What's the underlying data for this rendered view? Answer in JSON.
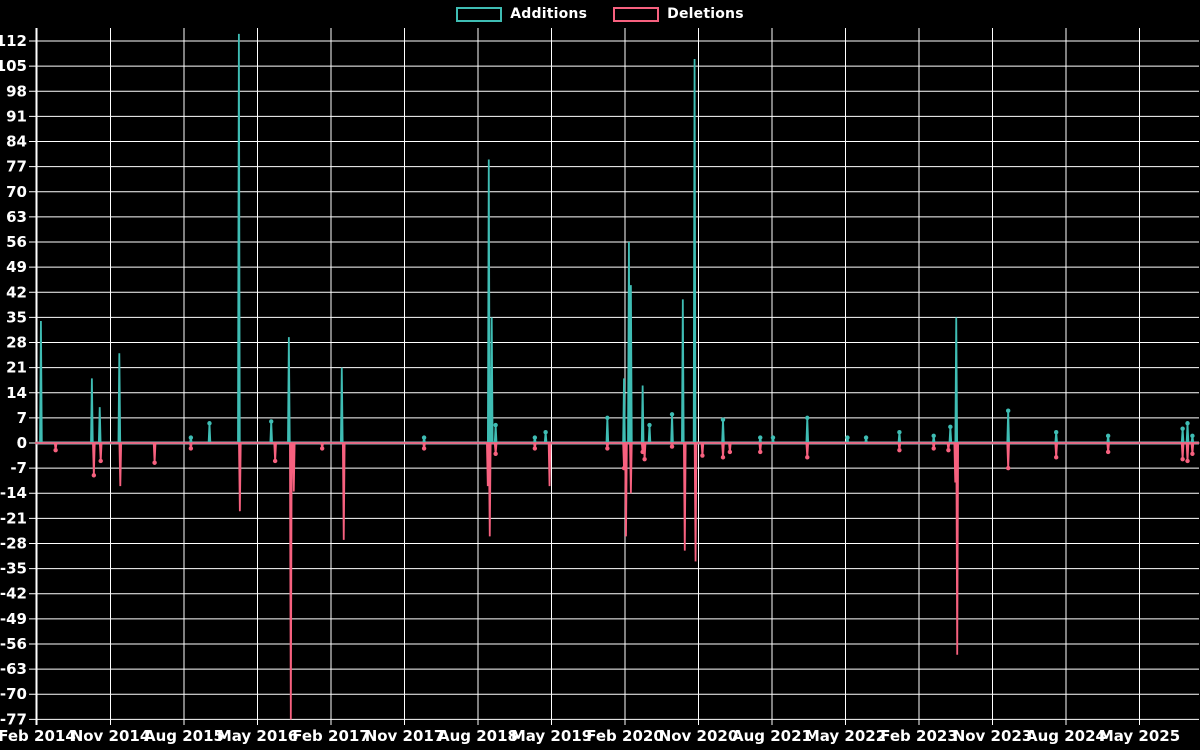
{
  "legend": {
    "items": [
      {
        "label": "Additions",
        "color": "#3fbdb4"
      },
      {
        "label": "Deletions",
        "color": "#f7617f"
      }
    ]
  },
  "colors": {
    "background": "#000000",
    "grid": "#ffffff",
    "zero_line": "#8fb0ba",
    "text": "#ffffff",
    "additions": "#3fbdb4",
    "deletions": "#f7617f"
  },
  "chart_data": {
    "type": "line",
    "title": "",
    "xlabel": "",
    "ylabel": "",
    "legend_position": "top-center",
    "grid": true,
    "baseline": 0,
    "y_axis": {
      "min": -77,
      "max": 112,
      "step": 7
    },
    "x_axis": {
      "tick_labels": [
        "Feb 2014",
        "Nov 2014",
        "Aug 2015",
        "May 2016",
        "Feb 2017",
        "Nov 2017",
        "Aug 2018",
        "May 2019",
        "Feb 2020",
        "Nov 2020",
        "Aug 2021",
        "May 2022",
        "Feb 2023",
        "Nov 2023",
        "Aug 2024",
        "May 2025"
      ],
      "first_tick_year": 2014.12,
      "years_per_tick": 0.75,
      "range_start_year": 2014.1,
      "range_end_year": 2025.98
    },
    "series": [
      {
        "name": "Additions",
        "color": "#3fbdb4",
        "points": [
          [
            2014.16,
            34
          ],
          [
            2014.68,
            18
          ],
          [
            2014.76,
            10
          ],
          [
            2014.96,
            25
          ],
          [
            2015.69,
            1.5
          ],
          [
            2015.88,
            5.5
          ],
          [
            2016.18,
            114
          ],
          [
            2016.51,
            6
          ],
          [
            2016.69,
            29.5
          ],
          [
            2017.23,
            21
          ],
          [
            2018.07,
            1.5
          ],
          [
            2018.73,
            79
          ],
          [
            2018.76,
            35
          ],
          [
            2018.8,
            5
          ],
          [
            2019.2,
            1.5
          ],
          [
            2019.31,
            3
          ],
          [
            2019.94,
            7
          ],
          [
            2020.11,
            18
          ],
          [
            2020.16,
            56
          ],
          [
            2020.18,
            44
          ],
          [
            2020.3,
            16
          ],
          [
            2020.37,
            5
          ],
          [
            2020.6,
            8
          ],
          [
            2020.71,
            40
          ],
          [
            2020.83,
            107
          ],
          [
            2021.12,
            6.5
          ],
          [
            2021.5,
            1.5
          ],
          [
            2021.63,
            1.5
          ],
          [
            2021.98,
            7
          ],
          [
            2022.39,
            1.5
          ],
          [
            2022.58,
            1.5
          ],
          [
            2022.92,
            3
          ],
          [
            2023.27,
            2
          ],
          [
            2023.44,
            4.5
          ],
          [
            2023.5,
            35
          ],
          [
            2024.03,
            9
          ],
          [
            2024.52,
            3
          ],
          [
            2025.05,
            2
          ],
          [
            2025.81,
            4
          ],
          [
            2025.86,
            5.5
          ],
          [
            2025.91,
            2
          ]
        ]
      },
      {
        "name": "Deletions",
        "color": "#f7617f",
        "points": [
          [
            2014.31,
            -2
          ],
          [
            2014.7,
            -9
          ],
          [
            2014.77,
            -5
          ],
          [
            2014.97,
            -12
          ],
          [
            2015.32,
            -5.5
          ],
          [
            2015.69,
            -1.5
          ],
          [
            2016.19,
            -19
          ],
          [
            2016.55,
            -5
          ],
          [
            2016.71,
            -77
          ],
          [
            2016.74,
            -13.5
          ],
          [
            2017.03,
            -1.5
          ],
          [
            2017.25,
            -27
          ],
          [
            2018.07,
            -1.5
          ],
          [
            2018.72,
            -12
          ],
          [
            2018.74,
            -26
          ],
          [
            2018.8,
            -3
          ],
          [
            2019.2,
            -1.5
          ],
          [
            2019.35,
            -12
          ],
          [
            2019.94,
            -1.5
          ],
          [
            2020.11,
            -7
          ],
          [
            2020.13,
            -26
          ],
          [
            2020.18,
            -14
          ],
          [
            2020.3,
            -2.5
          ],
          [
            2020.32,
            -4.5
          ],
          [
            2020.6,
            -1
          ],
          [
            2020.73,
            -30
          ],
          [
            2020.84,
            -33
          ],
          [
            2020.91,
            -3.5
          ],
          [
            2021.12,
            -4
          ],
          [
            2021.19,
            -2.5
          ],
          [
            2021.5,
            -2.5
          ],
          [
            2021.98,
            -4
          ],
          [
            2022.92,
            -2
          ],
          [
            2023.27,
            -1.5
          ],
          [
            2023.42,
            -2
          ],
          [
            2023.49,
            -11
          ],
          [
            2023.51,
            -59
          ],
          [
            2024.03,
            -7
          ],
          [
            2024.52,
            -4
          ],
          [
            2025.05,
            -2.5
          ],
          [
            2025.81,
            -4.5
          ],
          [
            2025.86,
            -5
          ],
          [
            2025.91,
            -3
          ]
        ]
      }
    ]
  }
}
